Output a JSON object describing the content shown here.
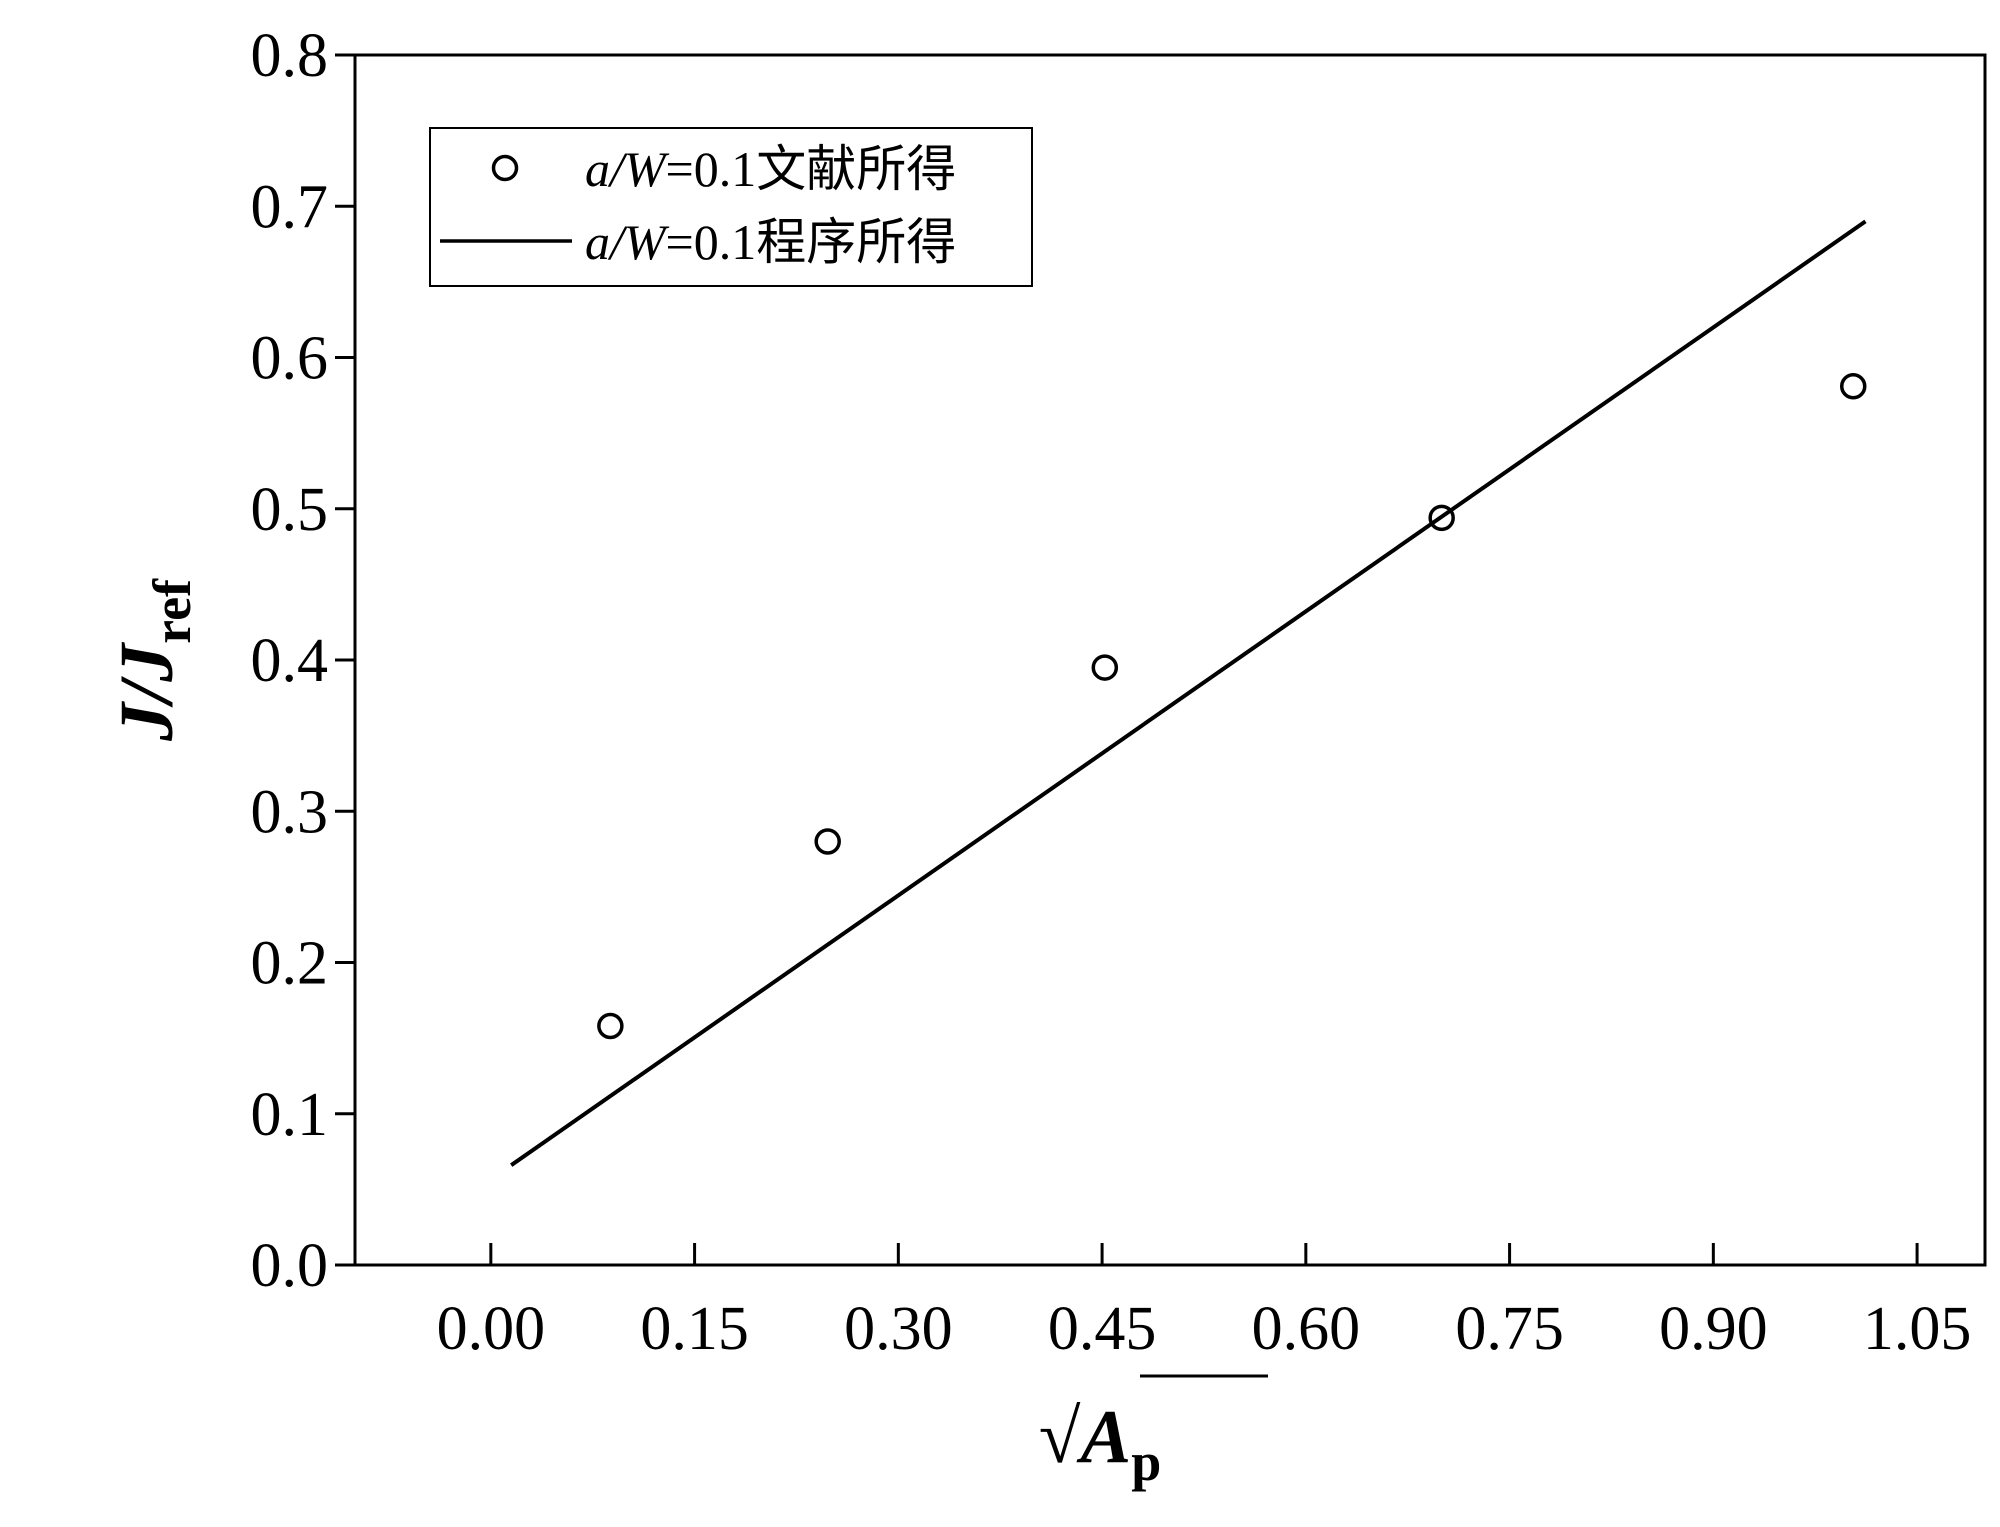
{
  "chart_data": {
    "type": "scatter",
    "xlabel": {
      "radical": "√",
      "main": "A",
      "sub": "p"
    },
    "ylabel": {
      "main": "J/J",
      "sub": "ref"
    },
    "xlim": [
      -0.1,
      1.1
    ],
    "ylim": [
      0.0,
      0.8
    ],
    "xticks": [
      0.0,
      0.15,
      0.3,
      0.45,
      0.6,
      0.75,
      0.9,
      1.05
    ],
    "xtick_labels": [
      "0.00",
      "0.15",
      "0.30",
      "0.45",
      "0.60",
      "0.75",
      "0.90",
      "1.05"
    ],
    "yticks": [
      0.0,
      0.1,
      0.2,
      0.3,
      0.4,
      0.5,
      0.6,
      0.7,
      0.8
    ],
    "ytick_labels": [
      "0.0",
      "0.1",
      "0.2",
      "0.3",
      "0.4",
      "0.5",
      "0.6",
      "0.7",
      "0.8"
    ],
    "grid": false,
    "legend_position": "top-left",
    "series": [
      {
        "legend": {
          "italic": "a/W",
          "rest": "=0.1文献所得"
        },
        "kind": "scatter",
        "marker": "open-circle",
        "color": "#000000",
        "x": [
          0.088,
          0.248,
          0.452,
          0.7,
          1.003
        ],
        "y": [
          0.158,
          0.28,
          0.395,
          0.494,
          0.581
        ]
      },
      {
        "legend": {
          "italic": "a/W",
          "rest": "=0.1程序所得"
        },
        "kind": "line",
        "color": "#000000",
        "x": [
          0.015,
          1.012
        ],
        "y": [
          0.066,
          0.69
        ]
      }
    ]
  }
}
